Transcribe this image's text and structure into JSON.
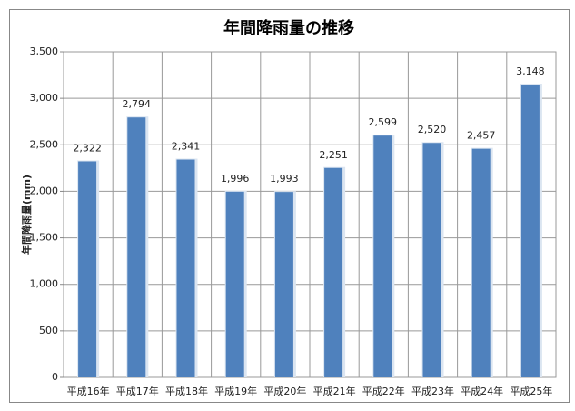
{
  "chart_data": {
    "type": "bar",
    "title": "年間降雨量の推移",
    "y_label": "年間降雨量(mm)",
    "categories": [
      "平成16年",
      "平成17年",
      "平成18年",
      "平成19年",
      "平成20年",
      "平成21年",
      "平成22年",
      "平成23年",
      "平成24年",
      "平成25年"
    ],
    "values": [
      2322,
      2794,
      2341,
      1996,
      1993,
      2251,
      2599,
      2520,
      2457,
      3148
    ],
    "value_labels": [
      "2,322",
      "2,794",
      "2,341",
      "1,996",
      "1,993",
      "2,251",
      "2,599",
      "2,520",
      "2,457",
      "3,148"
    ],
    "color": "#4f81bd",
    "ylim": [
      0,
      3500
    ],
    "yticks": [
      0,
      500,
      {
        "value": 1000,
        "label": "1,000"
      },
      {
        "value": 1500,
        "label": "1,500"
      },
      {
        "value": 2000,
        "label": "2,000"
      },
      {
        "value": 2500,
        "label": "2,500"
      },
      {
        "value": 3000,
        "label": "3,000"
      },
      {
        "value": 3500,
        "label": "3,500"
      }
    ],
    "grid": true
  }
}
